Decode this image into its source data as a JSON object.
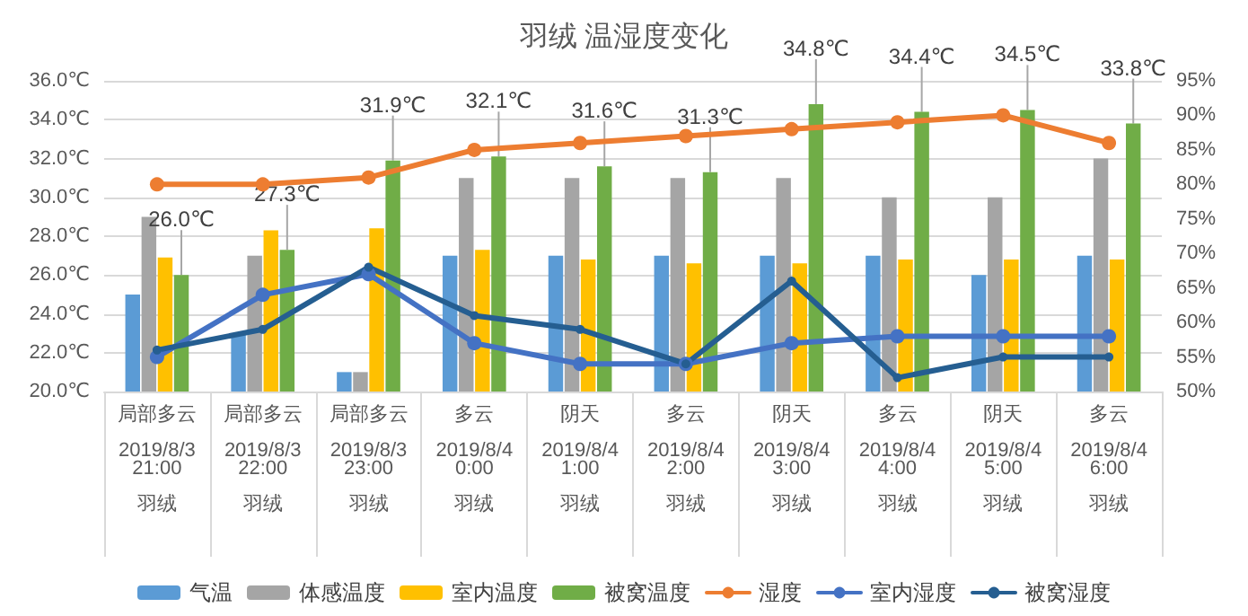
{
  "chart_data": {
    "type": "bar",
    "title": "羽绒 温湿度变化",
    "categories": [
      "局部多云\n\n2019/8/3\n21:00\n\n羽绒",
      "局部多云\n\n2019/8/3\n22:00\n\n羽绒",
      "局部多云\n\n2019/8/3\n23:00\n\n羽绒",
      "多云\n\n2019/8/4\n0:00\n\n羽绒",
      "阴天\n\n2019/8/4\n1:00\n\n羽绒",
      "多云\n\n2019/8/4\n2:00\n\n羽绒",
      "阴天\n\n2019/8/4\n3:00\n\n羽绒",
      "多云\n\n2019/8/4\n4:00\n\n羽绒",
      "阴天\n\n2019/8/4\n5:00\n\n羽绒",
      "多云\n\n2019/8/4\n6:00\n\n羽绒"
    ],
    "series": [
      {
        "name": "气温",
        "color": "#5b9bd5",
        "values": [
          25,
          23,
          21,
          27,
          27,
          27,
          27,
          27,
          26,
          27
        ]
      },
      {
        "name": "体感温度",
        "color": "#a5a5a5",
        "values": [
          29,
          27,
          21,
          31,
          31,
          31,
          31,
          30,
          30,
          32
        ]
      },
      {
        "name": "室内温度",
        "color": "#ffc000",
        "values": [
          26.9,
          28.3,
          28.4,
          27.3,
          26.8,
          26.6,
          26.6,
          26.8,
          26.8,
          26.8
        ]
      },
      {
        "name": "被窝温度",
        "color": "#70ad47",
        "values": [
          26.0,
          27.3,
          31.9,
          32.1,
          31.6,
          31.3,
          34.8,
          34.4,
          34.5,
          33.8
        ],
        "value_labels": [
          "26.0℃",
          "27.3℃",
          "31.9℃",
          "32.1℃",
          "31.6℃",
          "31.3℃",
          "34.8℃",
          "34.4℃",
          "34.5℃",
          "33.8℃"
        ]
      },
      {
        "name": "湿度",
        "type": "line",
        "axis": "y2",
        "color": "#ed7d31",
        "values": [
          80,
          80,
          81,
          85,
          86,
          87,
          88,
          89,
          90,
          86
        ]
      },
      {
        "name": "室内湿度",
        "type": "line",
        "axis": "y2",
        "color": "#4472c4",
        "values": [
          55,
          64,
          67,
          57,
          54,
          54,
          57,
          58,
          58,
          58
        ]
      },
      {
        "name": "被窝湿度",
        "type": "line",
        "axis": "y2",
        "color": "#255e91",
        "values": [
          56,
          59,
          68,
          61,
          59,
          54,
          66,
          52,
          55,
          55
        ]
      }
    ],
    "ylim": [
      20,
      36
    ],
    "yticks": [
      {
        "value": 20,
        "label": "20.0℃"
      },
      {
        "value": 22,
        "label": "22.0℃"
      },
      {
        "value": 24,
        "label": "24.0℃"
      },
      {
        "value": 26,
        "label": "26.0℃"
      },
      {
        "value": 28,
        "label": "28.0℃"
      },
      {
        "value": 30,
        "label": "30.0℃"
      },
      {
        "value": 32,
        "label": "32.0℃"
      },
      {
        "value": 34,
        "label": "34.0℃"
      },
      {
        "value": 36,
        "label": "36.0℃"
      }
    ],
    "y2lim": [
      50,
      95
    ],
    "y2ticks": [
      {
        "value": 50,
        "label": "50%"
      },
      {
        "value": 55,
        "label": "55%"
      },
      {
        "value": 60,
        "label": "60%"
      },
      {
        "value": 65,
        "label": "65%"
      },
      {
        "value": 70,
        "label": "70%"
      },
      {
        "value": 75,
        "label": "75%"
      },
      {
        "value": 80,
        "label": "80%"
      },
      {
        "value": 85,
        "label": "85%"
      },
      {
        "value": 90,
        "label": "90%"
      },
      {
        "value": 95,
        "label": "95%"
      }
    ],
    "grid": "y",
    "legend": "bottom",
    "marker": "circle"
  }
}
